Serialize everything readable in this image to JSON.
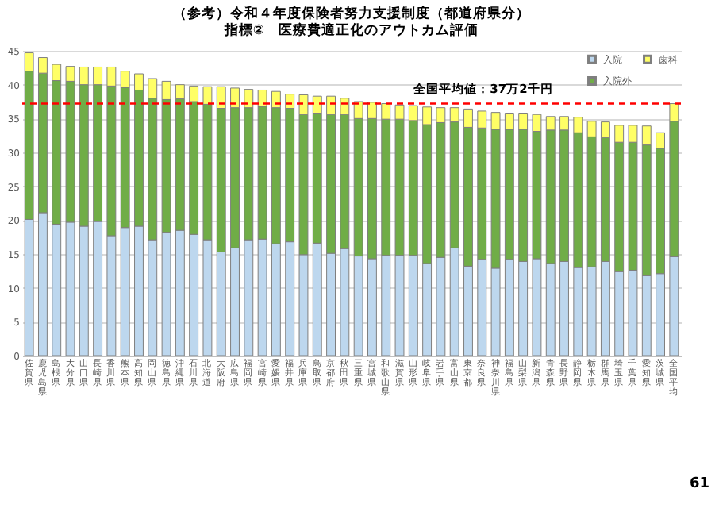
{
  "chart_data": {
    "type": "bar",
    "stacked": true,
    "title": "（参考）令和４年度保険者努力支援制度（都道府県分）",
    "subtitle": "指標②　医療費適正化のアウトカム評価",
    "categories": [
      "佐賀県",
      "鹿児島県",
      "島根県",
      "大分県",
      "山口県",
      "長崎県",
      "香川県",
      "熊本県",
      "高知県",
      "岡山県",
      "徳島県",
      "沖縄県",
      "石川県",
      "北海道",
      "大阪府",
      "広島県",
      "福岡県",
      "宮崎県",
      "愛媛県",
      "福井県",
      "兵庫県",
      "鳥取県",
      "京都府",
      "秋田県",
      "三重県",
      "宮城県",
      "和歌山県",
      "滋賀県",
      "山形県",
      "岐阜県",
      "岩手県",
      "富山県",
      "東京都",
      "奈良県",
      "神奈川県",
      "福島県",
      "山梨県",
      "新潟県",
      "青森県",
      "長野県",
      "静岡県",
      "栃木県",
      "群馬県",
      "埼玉県",
      "千葉県",
      "愛知県",
      "茨城県",
      "全国平均"
    ],
    "series": [
      {
        "name": "入院",
        "color": "#bdd7ee",
        "values": [
          20.1,
          21.1,
          19.4,
          19.7,
          19.1,
          19.8,
          17.7,
          18.9,
          19.1,
          17.1,
          18.2,
          18.5,
          17.9,
          17.1,
          15.3,
          15.9,
          17.1,
          17.2,
          16.5,
          16.8,
          14.9,
          16.6,
          15.1,
          15.8,
          14.7,
          14.3,
          14.8,
          14.8,
          14.8,
          13.6,
          14.5,
          15.9,
          13.2,
          14.2,
          12.9,
          14.2,
          13.9,
          14.3,
          13.6,
          13.9,
          13.0,
          13.1,
          13.9,
          12.4,
          12.6,
          11.8,
          12.1,
          14.6
        ]
      },
      {
        "name": "入院外",
        "color": "#70ad47",
        "values": [
          21.9,
          20.6,
          21.2,
          20.8,
          20.9,
          20.2,
          22.1,
          20.7,
          20.1,
          20.9,
          19.6,
          19.4,
          19.6,
          20.0,
          21.2,
          20.7,
          19.5,
          19.6,
          20.1,
          19.7,
          20.7,
          19.2,
          20.5,
          19.8,
          20.3,
          20.7,
          20.1,
          20.1,
          19.9,
          20.5,
          19.9,
          18.6,
          20.5,
          19.4,
          20.5,
          19.2,
          19.5,
          18.8,
          19.7,
          19.4,
          19.9,
          19.2,
          18.3,
          19.1,
          18.9,
          19.3,
          18.5,
          20.0
        ]
      },
      {
        "name": "歯科",
        "color": "#ffff66",
        "values": [
          2.7,
          2.3,
          2.4,
          2.2,
          2.6,
          2.6,
          2.8,
          2.4,
          2.4,
          2.9,
          2.7,
          2.1,
          2.3,
          2.6,
          3.2,
          2.9,
          2.7,
          2.4,
          2.4,
          2.1,
          2.9,
          2.5,
          2.7,
          2.4,
          2.5,
          2.4,
          2.3,
          2.1,
          2.2,
          2.6,
          2.2,
          2.1,
          2.7,
          2.5,
          2.5,
          2.4,
          2.4,
          2.5,
          2.0,
          2.0,
          2.3,
          2.3,
          2.3,
          2.5,
          2.5,
          2.8,
          2.3,
          2.6
        ]
      }
    ],
    "ylim": [
      0,
      45
    ],
    "yticks": [
      0,
      5,
      10,
      15,
      20,
      25,
      30,
      35,
      40,
      45
    ],
    "grid": "y",
    "legend": "top right",
    "ref_lines": [
      {
        "axis": "y",
        "value": 37.2,
        "label": "全国平均値：37万2千円",
        "color": "#ff0000",
        "line_style": "dashed"
      }
    ],
    "annotations": [
      "61"
    ]
  }
}
